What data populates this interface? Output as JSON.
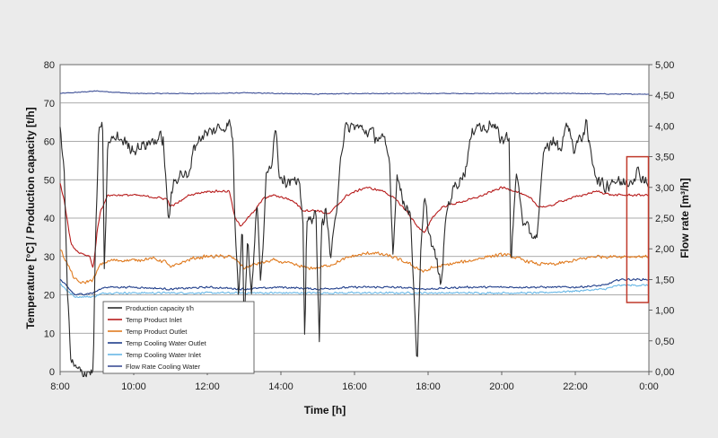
{
  "chart_data": {
    "type": "line",
    "xlabel": "Time [h]",
    "ylabel_left": "Temperature [°C] / Production capacity [t/h]",
    "ylabel_right": "Flow rate [m³/h]",
    "x_ticks": [
      "8:00",
      "10:00",
      "12:00",
      "14:00",
      "16:00",
      "18:00",
      "20:00",
      "22:00",
      "0:00"
    ],
    "x_range_hours": [
      8,
      24
    ],
    "y_left_ticks": [
      "0",
      "10",
      "20",
      "30",
      "40",
      "50",
      "60",
      "70",
      "80"
    ],
    "y_left_range": [
      0,
      80
    ],
    "y_right_ticks": [
      "0,00",
      "0,50",
      "1,00",
      "1,50",
      "2,00",
      "2,50",
      "3,00",
      "3,50",
      "4,00",
      "4,50",
      "5,00"
    ],
    "y_right_range": [
      0,
      5
    ],
    "grid": "horizontal",
    "legend_position": "bottom-left",
    "highlight_box": {
      "x_start_h": 23.4,
      "x_end_h": 24,
      "y_min": 18,
      "y_max": 56,
      "color": "#c0392b"
    },
    "series": [
      {
        "name": "Production capacity t/h",
        "color": "#2b2b2b",
        "axis": "left",
        "noise": 2.2,
        "points": [
          [
            8.0,
            63
          ],
          [
            8.1,
            55
          ],
          [
            8.2,
            20
          ],
          [
            8.3,
            2
          ],
          [
            8.5,
            0
          ],
          [
            8.9,
            0
          ],
          [
            8.95,
            30
          ],
          [
            9.05,
            62
          ],
          [
            9.15,
            66
          ],
          [
            9.2,
            25
          ],
          [
            9.3,
            60
          ],
          [
            9.6,
            61
          ],
          [
            10.0,
            58
          ],
          [
            10.5,
            60
          ],
          [
            10.8,
            61
          ],
          [
            10.9,
            45
          ],
          [
            10.95,
            40
          ],
          [
            11.1,
            50
          ],
          [
            11.3,
            52
          ],
          [
            11.5,
            50
          ],
          [
            11.6,
            58
          ],
          [
            11.8,
            61
          ],
          [
            12.2,
            63
          ],
          [
            12.5,
            64
          ],
          [
            12.6,
            65
          ],
          [
            12.7,
            60
          ],
          [
            12.75,
            38
          ],
          [
            12.85,
            20
          ],
          [
            12.95,
            40
          ],
          [
            13.0,
            12
          ],
          [
            13.1,
            35
          ],
          [
            13.2,
            20
          ],
          [
            13.35,
            45
          ],
          [
            13.45,
            22
          ],
          [
            13.6,
            50
          ],
          [
            13.75,
            55
          ],
          [
            13.85,
            65
          ],
          [
            13.95,
            52
          ],
          [
            14.1,
            50
          ],
          [
            14.3,
            50
          ],
          [
            14.5,
            48
          ],
          [
            14.6,
            40
          ],
          [
            14.65,
            6
          ],
          [
            14.7,
            38
          ],
          [
            14.8,
            40
          ],
          [
            14.95,
            42
          ],
          [
            15.05,
            4
          ],
          [
            15.1,
            40
          ],
          [
            15.15,
            38
          ],
          [
            15.2,
            44
          ],
          [
            15.35,
            30
          ],
          [
            15.5,
            40
          ],
          [
            15.6,
            55
          ],
          [
            15.75,
            63
          ],
          [
            16.0,
            64
          ],
          [
            16.5,
            62
          ],
          [
            16.8,
            60
          ],
          [
            16.95,
            55
          ],
          [
            17.05,
            30
          ],
          [
            17.15,
            52
          ],
          [
            17.3,
            45
          ],
          [
            17.5,
            42
          ],
          [
            17.6,
            25
          ],
          [
            17.7,
            2
          ],
          [
            17.8,
            30
          ],
          [
            17.9,
            45
          ],
          [
            18.05,
            35
          ],
          [
            18.2,
            30
          ],
          [
            18.35,
            22
          ],
          [
            18.5,
            42
          ],
          [
            18.7,
            48
          ],
          [
            18.85,
            50
          ],
          [
            19.0,
            52
          ],
          [
            19.15,
            60
          ],
          [
            19.3,
            65
          ],
          [
            19.5,
            63
          ],
          [
            19.7,
            65
          ],
          [
            19.9,
            62
          ],
          [
            20.05,
            60
          ],
          [
            20.2,
            62
          ],
          [
            20.25,
            28
          ],
          [
            20.4,
            52
          ],
          [
            20.6,
            38
          ],
          [
            20.8,
            36
          ],
          [
            20.95,
            35
          ],
          [
            21.05,
            45
          ],
          [
            21.15,
            58
          ],
          [
            21.4,
            60
          ],
          [
            21.6,
            58
          ],
          [
            21.7,
            62
          ],
          [
            21.8,
            65
          ],
          [
            21.95,
            58
          ],
          [
            22.1,
            60
          ],
          [
            22.3,
            64
          ],
          [
            22.4,
            58
          ],
          [
            22.6,
            50
          ],
          [
            22.8,
            48
          ],
          [
            23.0,
            50
          ],
          [
            23.3,
            49
          ],
          [
            23.5,
            50
          ],
          [
            23.7,
            52
          ],
          [
            23.9,
            50
          ],
          [
            24.0,
            49
          ]
        ]
      },
      {
        "name": "Temp Product Inlet",
        "color": "#b71c1c",
        "axis": "left",
        "noise": 0.35,
        "points": [
          [
            8.0,
            49
          ],
          [
            8.1,
            45
          ],
          [
            8.3,
            33
          ],
          [
            8.5,
            31
          ],
          [
            8.8,
            30
          ],
          [
            8.9,
            27
          ],
          [
            9.0,
            36
          ],
          [
            9.1,
            42
          ],
          [
            9.3,
            46
          ],
          [
            9.5,
            46
          ],
          [
            10.0,
            46
          ],
          [
            10.5,
            45.5
          ],
          [
            10.9,
            45
          ],
          [
            11.0,
            43
          ],
          [
            11.2,
            44
          ],
          [
            11.5,
            46
          ],
          [
            12.0,
            47
          ],
          [
            12.6,
            47
          ],
          [
            12.75,
            40
          ],
          [
            12.9,
            38
          ],
          [
            13.0,
            39
          ],
          [
            13.3,
            42
          ],
          [
            13.5,
            45
          ],
          [
            13.8,
            46
          ],
          [
            14.2,
            45
          ],
          [
            14.4,
            44
          ],
          [
            14.6,
            42
          ],
          [
            15.0,
            42
          ],
          [
            15.3,
            41
          ],
          [
            15.5,
            43
          ],
          [
            15.8,
            46
          ],
          [
            16.3,
            48
          ],
          [
            16.8,
            47
          ],
          [
            17.1,
            45
          ],
          [
            17.4,
            42
          ],
          [
            17.7,
            38
          ],
          [
            17.9,
            36
          ],
          [
            18.1,
            40
          ],
          [
            18.4,
            43
          ],
          [
            18.8,
            44
          ],
          [
            19.2,
            45
          ],
          [
            19.5,
            46
          ],
          [
            20.0,
            48
          ],
          [
            20.4,
            47
          ],
          [
            20.8,
            45
          ],
          [
            21.0,
            43
          ],
          [
            21.3,
            43
          ],
          [
            21.5,
            44
          ],
          [
            21.8,
            45
          ],
          [
            22.2,
            46
          ],
          [
            22.6,
            47
          ],
          [
            23.0,
            46
          ],
          [
            23.5,
            46
          ],
          [
            24.0,
            46
          ]
        ]
      },
      {
        "name": "Temp Product Outlet",
        "color": "#e07b20",
        "axis": "left",
        "noise": 0.55,
        "points": [
          [
            8.0,
            32
          ],
          [
            8.2,
            28
          ],
          [
            8.4,
            24
          ],
          [
            8.6,
            23
          ],
          [
            8.9,
            24
          ],
          [
            9.1,
            28
          ],
          [
            9.4,
            29
          ],
          [
            10.0,
            29
          ],
          [
            10.5,
            29.5
          ],
          [
            10.9,
            28.5
          ],
          [
            11.0,
            27
          ],
          [
            11.2,
            28
          ],
          [
            11.6,
            29.5
          ],
          [
            12.0,
            30
          ],
          [
            12.6,
            30
          ],
          [
            12.8,
            29
          ],
          [
            13.0,
            27
          ],
          [
            13.3,
            28
          ],
          [
            13.8,
            29
          ],
          [
            14.3,
            28
          ],
          [
            14.7,
            27
          ],
          [
            15.0,
            27
          ],
          [
            15.4,
            28
          ],
          [
            15.9,
            30
          ],
          [
            16.5,
            31
          ],
          [
            17.0,
            30
          ],
          [
            17.5,
            28
          ],
          [
            17.9,
            26
          ],
          [
            18.1,
            27
          ],
          [
            18.6,
            28
          ],
          [
            19.2,
            29
          ],
          [
            19.6,
            30
          ],
          [
            20.1,
            30.5
          ],
          [
            20.6,
            29
          ],
          [
            21.0,
            28
          ],
          [
            21.5,
            28
          ],
          [
            22.0,
            29
          ],
          [
            22.5,
            30
          ],
          [
            23.0,
            30
          ],
          [
            23.5,
            30
          ],
          [
            24.0,
            30
          ]
        ]
      },
      {
        "name": "Temp Cooling Water Outlet",
        "color": "#1f3d8a",
        "axis": "left",
        "noise": 0.3,
        "points": [
          [
            8.0,
            24
          ],
          [
            8.2,
            22
          ],
          [
            8.4,
            20
          ],
          [
            8.9,
            20.5
          ],
          [
            9.2,
            22
          ],
          [
            10.0,
            22
          ],
          [
            11.0,
            21.5
          ],
          [
            12.0,
            22
          ],
          [
            13.0,
            21.5
          ],
          [
            14.0,
            22
          ],
          [
            15.0,
            21.5
          ],
          [
            16.0,
            22
          ],
          [
            17.0,
            22
          ],
          [
            18.0,
            21.5
          ],
          [
            19.0,
            22
          ],
          [
            20.0,
            22
          ],
          [
            21.0,
            22
          ],
          [
            22.0,
            22
          ],
          [
            22.8,
            22.5
          ],
          [
            23.2,
            24
          ],
          [
            24.0,
            24
          ]
        ]
      },
      {
        "name": "Temp Cooling Water Inlet",
        "color": "#67b7e6",
        "axis": "left",
        "noise": 0.3,
        "points": [
          [
            8.0,
            23
          ],
          [
            8.2,
            21
          ],
          [
            8.4,
            19.5
          ],
          [
            8.9,
            19.5
          ],
          [
            9.2,
            20.5
          ],
          [
            10.0,
            20.5
          ],
          [
            11.0,
            20.5
          ],
          [
            12.0,
            20.5
          ],
          [
            13.0,
            20.5
          ],
          [
            14.0,
            20.5
          ],
          [
            15.0,
            20.5
          ],
          [
            16.0,
            20.5
          ],
          [
            17.0,
            20.5
          ],
          [
            18.0,
            20.5
          ],
          [
            19.0,
            20.5
          ],
          [
            20.0,
            20.5
          ],
          [
            21.0,
            20.5
          ],
          [
            22.0,
            21
          ],
          [
            22.8,
            21.5
          ],
          [
            23.2,
            22.5
          ],
          [
            24.0,
            22.5
          ]
        ]
      },
      {
        "name": "Flow Rate Cooling Water",
        "color": "#3d4f96",
        "axis": "right",
        "noise": 0.008,
        "points": [
          [
            8.0,
            4.53
          ],
          [
            8.5,
            4.55
          ],
          [
            9.0,
            4.57
          ],
          [
            9.5,
            4.55
          ],
          [
            10.0,
            4.53
          ],
          [
            11.0,
            4.53
          ],
          [
            12.0,
            4.53
          ],
          [
            13.0,
            4.54
          ],
          [
            14.0,
            4.53
          ],
          [
            15.0,
            4.52
          ],
          [
            16.0,
            4.53
          ],
          [
            17.0,
            4.53
          ],
          [
            18.0,
            4.53
          ],
          [
            19.0,
            4.53
          ],
          [
            20.0,
            4.53
          ],
          [
            21.0,
            4.53
          ],
          [
            22.0,
            4.53
          ],
          [
            23.0,
            4.52
          ],
          [
            24.0,
            4.52
          ]
        ]
      }
    ]
  }
}
